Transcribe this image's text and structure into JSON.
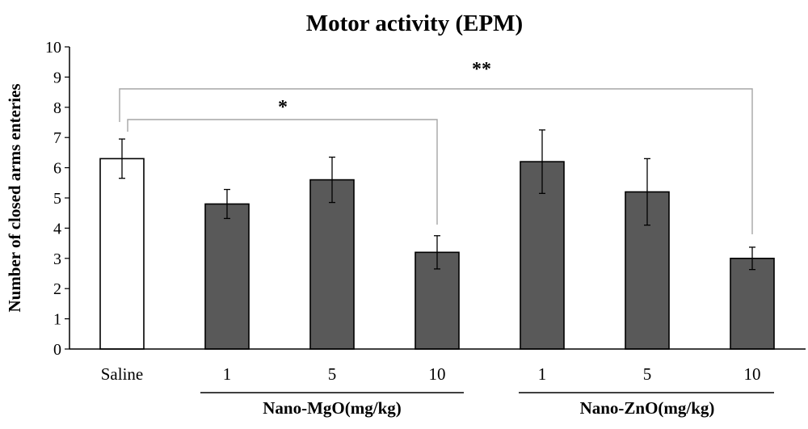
{
  "chart_data": {
    "type": "bar",
    "title": "Motor activity (EPM)",
    "xlabel": "",
    "ylabel": "Number of closed arms enteries",
    "ylim": [
      0,
      10
    ],
    "yticks": [
      0,
      1,
      2,
      3,
      4,
      5,
      6,
      7,
      8,
      9,
      10
    ],
    "grid": false,
    "categories": [
      "Saline",
      "1",
      "5",
      "10",
      "1",
      "5",
      "10"
    ],
    "values": [
      6.3,
      4.8,
      5.6,
      3.2,
      6.2,
      5.2,
      3.0
    ],
    "errors": [
      0.65,
      0.48,
      0.75,
      0.55,
      1.05,
      1.1,
      0.37
    ],
    "bar_colors": [
      "#ffffff",
      "#595959",
      "#595959",
      "#595959",
      "#595959",
      "#595959",
      "#595959"
    ],
    "groups": [
      {
        "label": "Nano-MgO(mg/kg)",
        "categories": [
          1,
          2,
          3
        ]
      },
      {
        "label": "Nano-ZnO(mg/kg)",
        "categories": [
          4,
          5,
          6
        ]
      }
    ],
    "annotations": [
      {
        "from": 0,
        "to": 3,
        "label": "*"
      },
      {
        "from": 0,
        "to": 6,
        "label": "**"
      }
    ]
  }
}
